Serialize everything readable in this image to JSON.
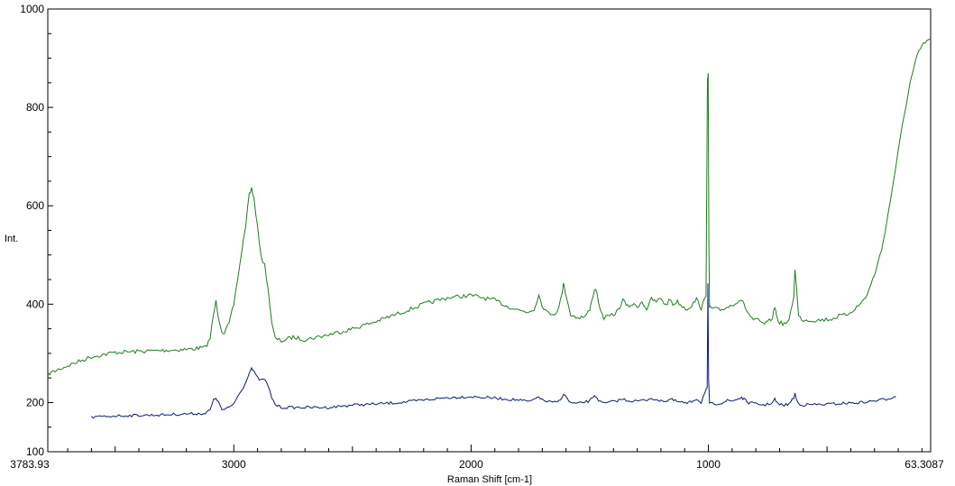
{
  "chart_data": {
    "type": "line",
    "title": "",
    "xlabel": "Raman Shift [cm-1]",
    "ylabel": "Int.",
    "xlim": [
      3783.93,
      63.3087
    ],
    "ylim": [
      100,
      1000
    ],
    "x_reversed": true,
    "grid": false,
    "legend": "none",
    "x_ticks": [
      {
        "value": 3783.93,
        "label": "3783.93"
      },
      {
        "value": 3000,
        "label": "3000"
      },
      {
        "value": 2000,
        "label": "2000"
      },
      {
        "value": 1000,
        "label": "1000"
      },
      {
        "value": 63.3087,
        "label": "63.3087"
      }
    ],
    "y_ticks": [
      {
        "value": 100,
        "label": "100"
      },
      {
        "value": 200,
        "label": "200"
      },
      {
        "value": 400,
        "label": "400"
      },
      {
        "value": 600,
        "label": "600"
      },
      {
        "value": 800,
        "label": "800"
      },
      {
        "value": 1000,
        "label": "1000"
      }
    ],
    "series": [
      {
        "color": "#1e7d1e",
        "points": [
          [
            3783.93,
            258
          ],
          [
            3700,
            275
          ],
          [
            3600,
            293
          ],
          [
            3500,
            302
          ],
          [
            3400,
            304
          ],
          [
            3300,
            306
          ],
          [
            3200,
            308
          ],
          [
            3120,
            312
          ],
          [
            3100,
            330
          ],
          [
            3085,
            380
          ],
          [
            3075,
            405
          ],
          [
            3065,
            375
          ],
          [
            3050,
            345
          ],
          [
            3040,
            342
          ],
          [
            3020,
            360
          ],
          [
            3000,
            400
          ],
          [
            2975,
            480
          ],
          [
            2950,
            560
          ],
          [
            2935,
            625
          ],
          [
            2925,
            634
          ],
          [
            2915,
            612
          ],
          [
            2900,
            560
          ],
          [
            2885,
            495
          ],
          [
            2870,
            480
          ],
          [
            2855,
            430
          ],
          [
            2840,
            360
          ],
          [
            2825,
            330
          ],
          [
            2800,
            325
          ],
          [
            2750,
            333
          ],
          [
            2700,
            328
          ],
          [
            2600,
            338
          ],
          [
            2500,
            350
          ],
          [
            2400,
            365
          ],
          [
            2300,
            382
          ],
          [
            2200,
            400
          ],
          [
            2100,
            413
          ],
          [
            2000,
            418
          ],
          [
            1900,
            408
          ],
          [
            1850,
            396
          ],
          [
            1800,
            388
          ],
          [
            1760,
            384
          ],
          [
            1735,
            390
          ],
          [
            1715,
            418
          ],
          [
            1700,
            398
          ],
          [
            1680,
            383
          ],
          [
            1650,
            380
          ],
          [
            1630,
            392
          ],
          [
            1610,
            440
          ],
          [
            1595,
            410
          ],
          [
            1580,
            378
          ],
          [
            1550,
            373
          ],
          [
            1520,
            375
          ],
          [
            1500,
            388
          ],
          [
            1480,
            432
          ],
          [
            1470,
            425
          ],
          [
            1455,
            385
          ],
          [
            1440,
            372
          ],
          [
            1400,
            378
          ],
          [
            1380,
            388
          ],
          [
            1360,
            408
          ],
          [
            1340,
            395
          ],
          [
            1320,
            400
          ],
          [
            1300,
            395
          ],
          [
            1280,
            405
          ],
          [
            1260,
            390
          ],
          [
            1240,
            410
          ],
          [
            1220,
            405
          ],
          [
            1200,
            412
          ],
          [
            1180,
            398
          ],
          [
            1160,
            410
          ],
          [
            1150,
            400
          ],
          [
            1130,
            405
          ],
          [
            1110,
            396
          ],
          [
            1090,
            390
          ],
          [
            1070,
            398
          ],
          [
            1050,
            410
          ],
          [
            1030,
            392
          ],
          [
            1010,
            415
          ],
          [
            1004,
            860
          ],
          [
            1001,
            868
          ],
          [
            998,
            520
          ],
          [
            995,
            395
          ],
          [
            990,
            392
          ],
          [
            970,
            390
          ],
          [
            950,
            388
          ],
          [
            930,
            392
          ],
          [
            900,
            398
          ],
          [
            880,
            405
          ],
          [
            860,
            410
          ],
          [
            850,
            398
          ],
          [
            830,
            380
          ],
          [
            810,
            368
          ],
          [
            790,
            367
          ],
          [
            770,
            360
          ],
          [
            750,
            362
          ],
          [
            730,
            373
          ],
          [
            720,
            395
          ],
          [
            712,
            375
          ],
          [
            700,
            362
          ],
          [
            680,
            360
          ],
          [
            660,
            365
          ],
          [
            640,
            418
          ],
          [
            635,
            473
          ],
          [
            628,
            430
          ],
          [
            620,
            375
          ],
          [
            600,
            368
          ],
          [
            580,
            368
          ],
          [
            560,
            367
          ],
          [
            520,
            368
          ],
          [
            480,
            370
          ],
          [
            450,
            376
          ],
          [
            420,
            378
          ],
          [
            390,
            388
          ],
          [
            360,
            400
          ],
          [
            330,
            420
          ],
          [
            300,
            460
          ],
          [
            270,
            510
          ],
          [
            240,
            590
          ],
          [
            210,
            680
          ],
          [
            180,
            770
          ],
          [
            150,
            850
          ],
          [
            120,
            905
          ],
          [
            100,
            925
          ],
          [
            80,
            935
          ],
          [
            63.3087,
            940
          ]
        ]
      },
      {
        "color": "#0c1a7a",
        "points": [
          [
            3600,
            170
          ],
          [
            3500,
            173
          ],
          [
            3400,
            174
          ],
          [
            3300,
            175
          ],
          [
            3200,
            177
          ],
          [
            3120,
            178
          ],
          [
            3100,
            185
          ],
          [
            3085,
            205
          ],
          [
            3075,
            210
          ],
          [
            3065,
            200
          ],
          [
            3050,
            186
          ],
          [
            3040,
            185
          ],
          [
            3020,
            190
          ],
          [
            3000,
            198
          ],
          [
            2975,
            220
          ],
          [
            2950,
            240
          ],
          [
            2935,
            262
          ],
          [
            2925,
            270
          ],
          [
            2915,
            262
          ],
          [
            2900,
            250
          ],
          [
            2885,
            245
          ],
          [
            2870,
            248
          ],
          [
            2855,
            232
          ],
          [
            2840,
            210
          ],
          [
            2825,
            196
          ],
          [
            2800,
            190
          ],
          [
            2700,
            190
          ],
          [
            2600,
            190
          ],
          [
            2500,
            195
          ],
          [
            2400,
            197
          ],
          [
            2300,
            200
          ],
          [
            2200,
            205
          ],
          [
            2100,
            210
          ],
          [
            2000,
            212
          ],
          [
            1900,
            209
          ],
          [
            1800,
            205
          ],
          [
            1760,
            202
          ],
          [
            1735,
            205
          ],
          [
            1715,
            213
          ],
          [
            1700,
            205
          ],
          [
            1680,
            202
          ],
          [
            1650,
            200
          ],
          [
            1630,
            203
          ],
          [
            1610,
            217
          ],
          [
            1595,
            208
          ],
          [
            1580,
            199
          ],
          [
            1550,
            198
          ],
          [
            1500,
            203
          ],
          [
            1480,
            215
          ],
          [
            1470,
            210
          ],
          [
            1455,
            201
          ],
          [
            1440,
            198
          ],
          [
            1400,
            202
          ],
          [
            1360,
            207
          ],
          [
            1340,
            204
          ],
          [
            1300,
            203
          ],
          [
            1260,
            205
          ],
          [
            1240,
            210
          ],
          [
            1220,
            203
          ],
          [
            1200,
            206
          ],
          [
            1180,
            202
          ],
          [
            1160,
            207
          ],
          [
            1140,
            203
          ],
          [
            1110,
            200
          ],
          [
            1090,
            198
          ],
          [
            1070,
            202
          ],
          [
            1050,
            208
          ],
          [
            1030,
            200
          ],
          [
            1015,
            222
          ],
          [
            1005,
            230
          ],
          [
            1002,
            440
          ],
          [
            999,
            245
          ],
          [
            995,
            200
          ],
          [
            990,
            197
          ],
          [
            960,
            198
          ],
          [
            940,
            200
          ],
          [
            920,
            204
          ],
          [
            900,
            203
          ],
          [
            880,
            207
          ],
          [
            860,
            210
          ],
          [
            850,
            206
          ],
          [
            830,
            200
          ],
          [
            800,
            197
          ],
          [
            760,
            195
          ],
          [
            730,
            200
          ],
          [
            720,
            207
          ],
          [
            712,
            199
          ],
          [
            700,
            196
          ],
          [
            680,
            195
          ],
          [
            660,
            197
          ],
          [
            640,
            210
          ],
          [
            635,
            218
          ],
          [
            628,
            205
          ],
          [
            620,
            198
          ],
          [
            600,
            195
          ],
          [
            560,
            196
          ],
          [
            520,
            196
          ],
          [
            480,
            197
          ],
          [
            440,
            198
          ],
          [
            400,
            199
          ],
          [
            360,
            200
          ],
          [
            320,
            202
          ],
          [
            280,
            205
          ],
          [
            250,
            207
          ],
          [
            230,
            210
          ],
          [
            220,
            212
          ],
          [
            210,
            211
          ]
        ]
      }
    ]
  }
}
